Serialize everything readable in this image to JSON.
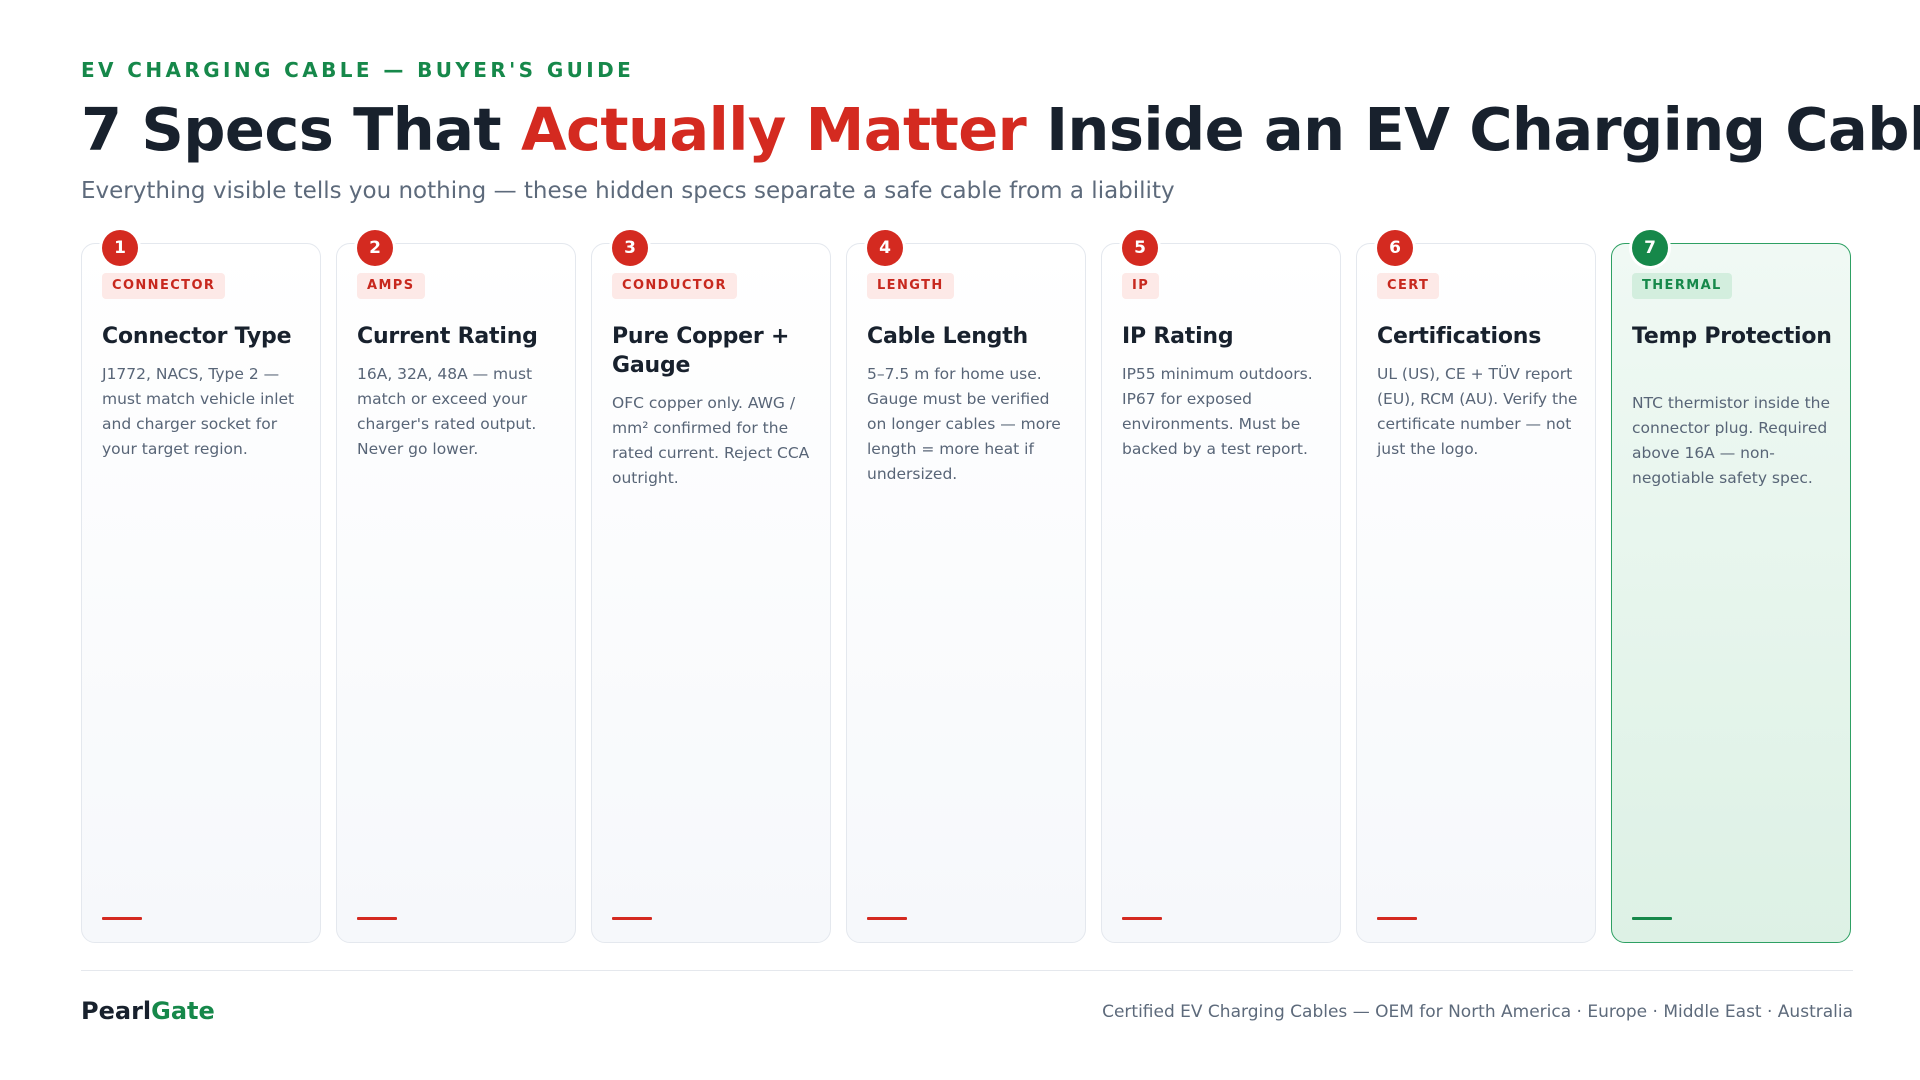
{
  "header": {
    "eyebrow": "EV CHARGING CABLE — BUYER'S GUIDE",
    "title_before": "7 Specs That ",
    "title_accent": "Actually Matter",
    "title_after": " Inside an EV Charging Cable",
    "subtitle": "Everything visible tells you nothing — these hidden specs separate a safe cable from a liability"
  },
  "colors": {
    "accent_red": "#d42a20",
    "accent_green": "#16884a",
    "ink": "#18212d",
    "muted": "#5d6a7b"
  },
  "cards": [
    {
      "number": "1",
      "tag": "CONNECTOR",
      "title": "Connector Type",
      "description": "J1772, NACS, Type 2 — must match vehicle inlet and charger socket for your target region.",
      "variant": "red"
    },
    {
      "number": "2",
      "tag": "AMPS",
      "title": "Current Rating",
      "description": "16A, 32A, 48A — must match or exceed your charger's rated output. Never go lower.",
      "variant": "red"
    },
    {
      "number": "3",
      "tag": "CONDUCTOR",
      "title": "Pure Copper + Gauge",
      "description": "OFC copper only. AWG / mm² confirmed for the rated current. Reject CCA outright.",
      "variant": "red"
    },
    {
      "number": "4",
      "tag": "LENGTH",
      "title": "Cable Length",
      "description": "5–7.5 m for home use. Gauge must be verified on longer cables — more length = more heat if undersized.",
      "variant": "red"
    },
    {
      "number": "5",
      "tag": "IP",
      "title": "IP Rating",
      "description": "IP55 minimum outdoors. IP67 for exposed environments. Must be backed by a test report.",
      "variant": "red"
    },
    {
      "number": "6",
      "tag": "CERT",
      "title": "Certifications",
      "description": "UL (US), CE + TÜV report (EU), RCM (AU). Verify the certificate number — not just the logo.",
      "variant": "red"
    },
    {
      "number": "7",
      "tag": "THERMAL",
      "title": "Temp Protection",
      "description": "NTC thermistor inside the connector plug. Required above 16A — non-negotiable safety spec.",
      "variant": "green"
    }
  ],
  "footer": {
    "brand_part1": "Pearl",
    "brand_part2": "Gate",
    "tagline": "Certified EV Charging Cables — OEM for North America · Europe · Middle East · Australia"
  }
}
